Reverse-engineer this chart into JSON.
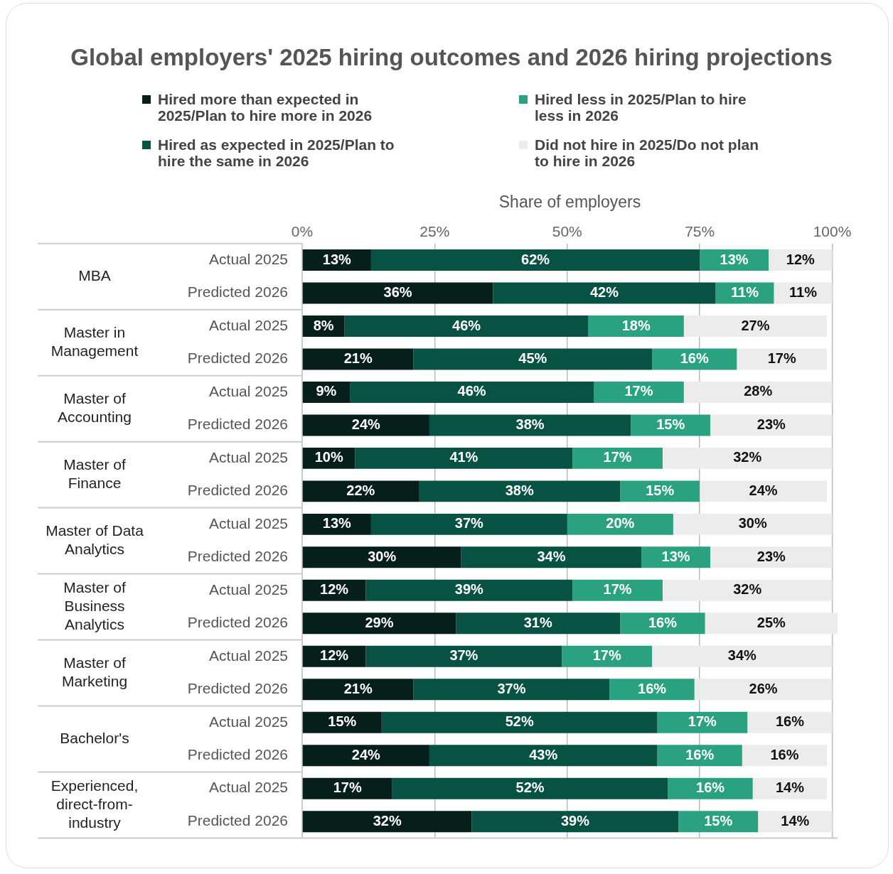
{
  "chart_data": {
    "type": "bar",
    "orientation": "horizontal",
    "stacked": true,
    "title": "Global employers' 2025 hiring outcomes and 2026 hiring projections",
    "xlabel": "Share of employers",
    "categories": [
      "Actual 2025",
      "Predicted 2026",
      "Actual 2025",
      "Predicted 2026",
      "Actual 2025",
      "Predicted 2026",
      "Actual 2025",
      "Predicted 2026",
      "Actual 2025",
      "Predicted 2026",
      "Actual 2025",
      "Predicted 2026",
      "Actual 2025",
      "Predicted 2026",
      "Actual 2025",
      "Predicted 2026",
      "Actual 2025",
      "Predicted 2026"
    ],
    "annotations": [
      "MBA",
      "Master in Management",
      "Master of Accounting",
      "Master of Finance",
      "Master of Data Analytics",
      "Master of Business Analytics",
      "Master of Marketing",
      "Bachelor's",
      "Experienced, direct-from-industry"
    ],
    "series": [
      {
        "name": "Hired more than expected in 2025/Plan to hire more in 2026",
        "color": "#061f1a",
        "values": [
          13,
          36,
          8,
          21,
          9,
          24,
          10,
          22,
          13,
          30,
          12,
          29,
          12,
          21,
          15,
          24,
          17,
          32
        ],
        "value_labels": [
          "13%",
          "36%",
          "8%",
          "21%",
          "9%",
          "24%",
          "10%",
          "22%",
          "13%",
          "30%",
          "12%",
          "29%",
          "12%",
          "21%",
          "15%",
          "24%",
          "17%",
          "32%"
        ]
      },
      {
        "name": "Hired as expected in 2025/Plan to hire the same in 2026",
        "color": "#075243",
        "values": [
          62,
          42,
          46,
          45,
          46,
          38,
          41,
          38,
          37,
          34,
          39,
          31,
          37,
          37,
          52,
          43,
          52,
          39
        ],
        "value_labels": [
          "62%",
          "42%",
          "46%",
          "45%",
          "46%",
          "38%",
          "41%",
          "38%",
          "37%",
          "34%",
          "39%",
          "31%",
          "37%",
          "37%",
          "52%",
          "43%",
          "52%",
          "39%"
        ]
      },
      {
        "name": "Hired less in 2025/Plan to hire less in 2026",
        "color": "#2aa27f",
        "values": [
          13,
          11,
          18,
          16,
          17,
          15,
          17,
          15,
          20,
          13,
          17,
          16,
          17,
          16,
          17,
          16,
          16,
          15
        ],
        "value_labels": [
          "13%",
          "11%",
          "18%",
          "16%",
          "17%",
          "15%",
          "17%",
          "15%",
          "20%",
          "13%",
          "17%",
          "16%",
          "17%",
          "16%",
          "17%",
          "16%",
          "16%",
          "15%"
        ]
      },
      {
        "name": "Did not hire in 2025/Do not plan to hire in 2026",
        "color": "#ececec",
        "values": [
          12,
          11,
          27,
          17,
          28,
          23,
          32,
          24,
          30,
          23,
          32,
          25,
          34,
          26,
          16,
          16,
          14,
          14
        ],
        "value_labels": [
          "12%",
          "11%",
          "27%",
          "17%",
          "28%",
          "23%",
          "32%",
          "24%",
          "30%",
          "23%",
          "32%",
          "25%",
          "34%",
          "26%",
          "16%",
          "16%",
          "14%",
          "14%"
        ]
      }
    ],
    "xlim": [
      0,
      101
    ],
    "xticks": [
      {
        "value": 0,
        "label": "0%"
      },
      {
        "value": 25,
        "label": "25%"
      },
      {
        "value": 50,
        "label": "50%"
      },
      {
        "value": 75,
        "label": "75%"
      },
      {
        "value": 100,
        "label": "100%"
      }
    ],
    "grid": "x",
    "legend": "top"
  }
}
